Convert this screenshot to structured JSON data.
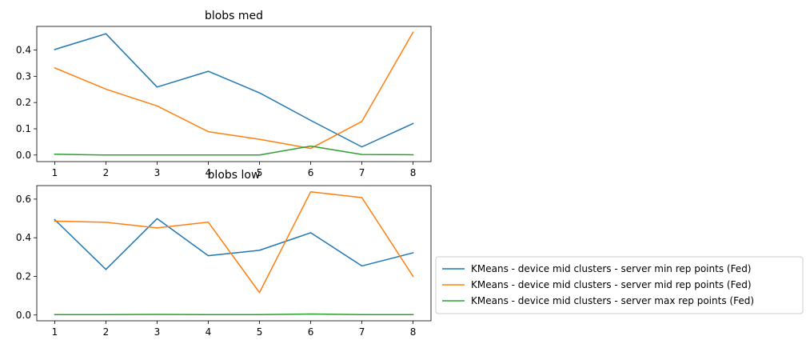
{
  "chart_data": [
    {
      "type": "line",
      "title": "blobs med",
      "xlabel": "",
      "ylabel": "",
      "x": [
        1,
        2,
        3,
        4,
        5,
        6,
        7,
        8
      ],
      "xticks": [
        "1",
        "2",
        "3",
        "4",
        "5",
        "6",
        "7",
        "8"
      ],
      "ylim": [
        -0.025,
        0.49
      ],
      "yticks": [
        0.0,
        0.1,
        0.2,
        0.3,
        0.4
      ],
      "ytick_labels": [
        "0.0",
        "0.1",
        "0.2",
        "0.3",
        "0.4"
      ],
      "grid": false,
      "series": [
        {
          "name": "KMeans - device mid clusters - server min rep points (Fed)",
          "color": "#1f77b4",
          "values": [
            0.402,
            0.462,
            0.259,
            0.319,
            0.237,
            0.132,
            0.031,
            0.12
          ]
        },
        {
          "name": "KMeans - device mid clusters - server mid rep points (Fed)",
          "color": "#ff7f0e",
          "values": [
            0.332,
            0.251,
            0.187,
            0.089,
            0.06,
            0.025,
            0.128,
            0.468
          ]
        },
        {
          "name": "KMeans - device mid clusters - server max rep points (Fed)",
          "color": "#2ca02c",
          "values": [
            0.003,
            0.0,
            0.0,
            0.0,
            0.0,
            0.034,
            0.002,
            0.001
          ]
        }
      ]
    },
    {
      "type": "line",
      "title": "blobs low",
      "xlabel": "",
      "ylabel": "",
      "x": [
        1,
        2,
        3,
        4,
        5,
        6,
        7,
        8
      ],
      "xticks": [
        "1",
        "2",
        "3",
        "4",
        "5",
        "6",
        "7",
        "8"
      ],
      "ylim": [
        -0.03,
        0.67
      ],
      "yticks": [
        0.0,
        0.2,
        0.4,
        0.6
      ],
      "ytick_labels": [
        "0.0",
        "0.2",
        "0.4",
        "0.6"
      ],
      "grid": false,
      "legend_placement": "outside-right-bottom",
      "series": [
        {
          "name": "KMeans - device mid clusters - server min rep points (Fed)",
          "color": "#1f77b4",
          "values": [
            0.494,
            0.236,
            0.499,
            0.307,
            0.335,
            0.426,
            0.254,
            0.322
          ]
        },
        {
          "name": "KMeans - device mid clusters - server mid rep points (Fed)",
          "color": "#ff7f0e",
          "values": [
            0.486,
            0.48,
            0.451,
            0.481,
            0.116,
            0.638,
            0.608,
            0.2
          ]
        },
        {
          "name": "KMeans - device mid clusters - server max rep points (Fed)",
          "color": "#2ca02c",
          "values": [
            0.002,
            0.002,
            0.003,
            0.002,
            0.002,
            0.005,
            0.002,
            0.002
          ]
        }
      ]
    }
  ],
  "legend": {
    "entries": [
      {
        "label": "KMeans - device mid clusters - server min rep points (Fed)",
        "color": "#1f77b4"
      },
      {
        "label": "KMeans - device mid clusters - server mid rep points (Fed)",
        "color": "#ff7f0e"
      },
      {
        "label": "KMeans - device mid clusters - server max rep points (Fed)",
        "color": "#2ca02c"
      }
    ]
  }
}
